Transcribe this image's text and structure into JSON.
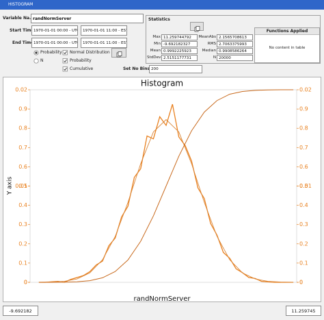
{
  "window_title": "HISTOGRAM",
  "form": {
    "variable_label": "Variable Na...",
    "variable_value": "randNormServer",
    "start_label": "Start Time",
    "start_utc": "1970-01-01 00:00 - UTC",
    "start_est": "1970-01-01 11:00 - EST",
    "end_label": "End Time",
    "end_utc": "1970-01-01 00:00 - UTC",
    "end_est": "1970-01-01 11:00 - EST",
    "radio_probability": "Probability",
    "radio_n": "N",
    "check_normal": "Normal Distribution",
    "check_probability": "Probability",
    "check_cumulative": "Cumulative",
    "bins_label": "Set No Bins",
    "bins_value": "200"
  },
  "statistics": {
    "title": "Statistics",
    "rows": [
      [
        "Max",
        "11.259744792",
        "MeanAbs",
        "2.1565708613"
      ],
      [
        "Min",
        "-9.692182327",
        "RMS",
        "2.7063375993"
      ],
      [
        "Mean",
        "0.9992225923",
        "Median",
        "0.9908586264"
      ],
      [
        "StdDev",
        "2.5151177731",
        "N",
        "20000"
      ]
    ]
  },
  "functions": {
    "title": "Functions Applied",
    "empty": "No content in table"
  },
  "range": {
    "min": "-9.692182",
    "max": "11.259745"
  },
  "chart_data": {
    "type": "line",
    "title": "Histogram",
    "xlabel": "randNormServer",
    "ylabel": "Y axis",
    "xlim": [
      -9.692182,
      11.259745
    ],
    "ylim": [
      0,
      0.02
    ],
    "yticks": [
      0,
      0.01,
      0.02
    ],
    "y2lim": [
      0,
      1
    ],
    "y2ticks": [
      0,
      0.1,
      0.2,
      0.3,
      0.4,
      0.5,
      0.6,
      0.7,
      0.8,
      0.9
    ],
    "series": [
      {
        "color": "#e8801f",
        "width": 1.3,
        "x": [
          -9,
          -8.5,
          -8,
          -7.5,
          -7,
          -6.5,
          -6,
          -5.5,
          -5,
          -4.5,
          -4,
          -3.5,
          -3,
          -2.5,
          -2,
          -1.5,
          -1,
          -0.5,
          0,
          0.5,
          1,
          1.5,
          2,
          2.5,
          3,
          3.5,
          4,
          4.5,
          5,
          5.5,
          6,
          6.5,
          7,
          7.5,
          8,
          8.5,
          9,
          9.5,
          10,
          10.5,
          11
        ],
        "values": [
          0,
          0,
          5e-05,
          0.0001,
          0,
          0.0003,
          0.0005,
          0.0007,
          0.0011,
          0.0018,
          0.0022,
          0.0038,
          0.0046,
          0.0068,
          0.0079,
          0.0109,
          0.0118,
          0.0152,
          0.0149,
          0.0172,
          0.0163,
          0.0185,
          0.0151,
          0.0142,
          0.0126,
          0.0098,
          0.0087,
          0.0061,
          0.0049,
          0.0031,
          0.0025,
          0.0014,
          0.001,
          0.0005,
          0.0004,
          0.0001,
          5e-05,
          0,
          0,
          0,
          0
        ]
      },
      {
        "color": "#d9873a",
        "width": 0.9,
        "x": [
          -9,
          -8,
          -7,
          -6,
          -5,
          -4,
          -3,
          -2,
          -1,
          0,
          1,
          2,
          3,
          4,
          5,
          6,
          7,
          8,
          9,
          10,
          11
        ],
        "values": [
          6e-06,
          3e-05,
          0.0001,
          0.00035,
          0.00098,
          0.00234,
          0.00477,
          0.0083,
          0.01232,
          0.01562,
          0.0169,
          0.01562,
          0.01232,
          0.0083,
          0.00477,
          0.00234,
          0.00098,
          0.00035,
          0.0001,
          3e-05,
          6e-06
        ]
      },
      {
        "color": "#c8691c",
        "width": 1,
        "axis": "y2",
        "x": [
          -9,
          -8,
          -7,
          -6,
          -5,
          -4,
          -3,
          -2,
          -1,
          0,
          1,
          2,
          3,
          4,
          5,
          6,
          7,
          8,
          9,
          10,
          11
        ],
        "values": [
          4e-05,
          0.0002,
          0.0007,
          0.0027,
          0.0085,
          0.0234,
          0.056,
          0.116,
          0.213,
          0.345,
          0.5,
          0.655,
          0.787,
          0.884,
          0.944,
          0.977,
          0.991,
          0.997,
          0.9993,
          0.9998,
          1
        ]
      }
    ]
  }
}
